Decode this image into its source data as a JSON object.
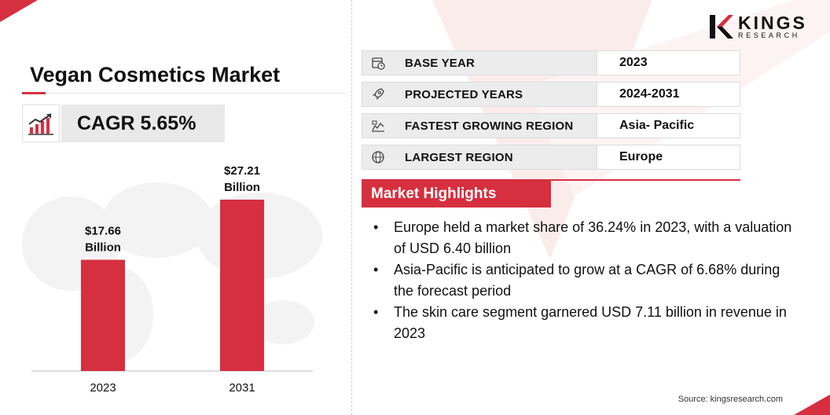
{
  "page": {
    "title": "Vegan Cosmetics Market",
    "cagr_label": "CAGR 5.65%",
    "accent_color": "#d62f3f",
    "source": "Source: kingsresearch.com"
  },
  "logo": {
    "word": "KINGS",
    "sub": "RESEARCH"
  },
  "chart_data": {
    "type": "bar",
    "categories": [
      "2023",
      "2031"
    ],
    "values": [
      17.66,
      27.21
    ],
    "data_labels": [
      [
        "$17.66",
        "Billion"
      ],
      [
        "$27.21",
        "Billion"
      ]
    ],
    "unit": "USD Billion",
    "color": "#d62f3f"
  },
  "table": {
    "rows": [
      {
        "icon": "calendar-icon",
        "label": "BASE YEAR",
        "value": "2023"
      },
      {
        "icon": "rocket-icon",
        "label": "PROJECTED YEARS",
        "value": "2024-2031"
      },
      {
        "icon": "growth-map-icon",
        "label": "FASTEST GROWING REGION",
        "value": "Asia- Pacific"
      },
      {
        "icon": "globe-icon",
        "label": "LARGEST REGION",
        "value": "Europe"
      }
    ]
  },
  "highlights": {
    "header": "Market Highlights",
    "items": [
      "Europe held a market share of 36.24% in 2023, with a valuation of USD 6.40 billion",
      "Asia-Pacific is anticipated to grow at a CAGR of 6.68% during the forecast period",
      "The skin care segment garnered USD 7.11 billion in revenue in 2023"
    ]
  }
}
